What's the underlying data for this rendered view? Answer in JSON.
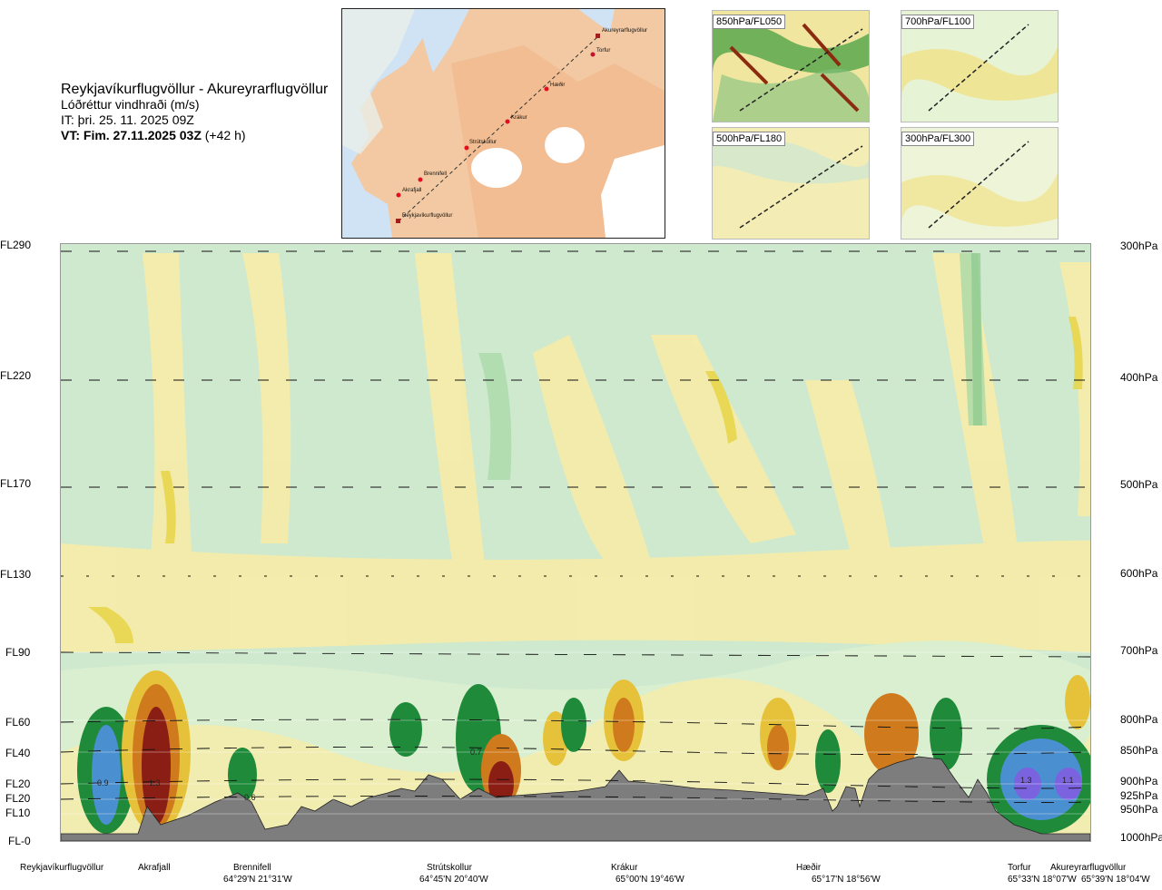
{
  "header": {
    "route": "Reykjavíkurflugvöllur - Akureyrarflugvöllur",
    "parameter": "Lóðréttur vindhraði (m/s)",
    "issued": "IT: þri. 25. 11. 2025 09Z",
    "valid_bold": "VT: Fim. 27.11.2025 03Z",
    "valid_offset": "(+42 h)"
  },
  "route_map": {
    "points": [
      {
        "name": "Akureyrarflugvöllur"
      },
      {
        "name": "Torfur"
      },
      {
        "name": "Hæðir"
      },
      {
        "name": "Krákur"
      },
      {
        "name": "Strútskollur"
      },
      {
        "name": "Brennifell"
      },
      {
        "name": "Akrafjall"
      },
      {
        "name": "Reykjavíkurflugvöllur"
      }
    ]
  },
  "thumbnails": [
    {
      "label": "850hPa/FL050"
    },
    {
      "label": "700hPa/FL100"
    },
    {
      "label": "500hPa/FL180"
    },
    {
      "label": "300hPa/FL300"
    }
  ],
  "levels": [
    {
      "fl": "FL290",
      "p": "300hPa"
    },
    {
      "fl": "FL220",
      "p": "400hPa"
    },
    {
      "fl": "FL170",
      "p": "500hPa"
    },
    {
      "fl": "FL130",
      "p": "600hPa"
    },
    {
      "fl": "FL90",
      "p": "700hPa"
    },
    {
      "fl": "FL60",
      "p": "800hPa"
    },
    {
      "fl": "FL40",
      "p": "850hPa"
    },
    {
      "fl": "FL20",
      "p": "900hPa"
    },
    {
      "fl": "FL20",
      "p": "925hPa"
    },
    {
      "fl": "FL10",
      "p": "950hPa"
    },
    {
      "fl": "FL-0",
      "p": "1000hPa"
    }
  ],
  "waypoints": [
    {
      "name": "Reykjavíkurflugvöllur",
      "coord": ""
    },
    {
      "name": "Akrafjall",
      "coord": ""
    },
    {
      "name": "Brennifell",
      "coord": "64°29'N 21°31'W"
    },
    {
      "name": "Strútskollur",
      "coord": "64°45'N 20°40'W"
    },
    {
      "name": "Krákur",
      "coord": "65°00'N 19°46'W"
    },
    {
      "name": "Hæðir",
      "coord": "65°17'N 18°56'W"
    },
    {
      "name": "Torfur",
      "coord": "65°33'N 18°07'W"
    },
    {
      "name": "Akureyrarflugvöllur",
      "coord": "65°39'N 18°04'W"
    }
  ],
  "cell_values": [
    "0.9",
    "1.3",
    "0.6",
    "0.7",
    "1.3",
    "1.1"
  ],
  "colors": {
    "strong_down": "#4a8fd0",
    "strong_down2": "#7b63e0",
    "down": "#1f8a3a",
    "weak_down": "#9bd49b",
    "neutral": "#cfe9cf",
    "weak_up": "#f5ecaa",
    "up": "#e6c23a",
    "strong_up": "#d07a1e",
    "very_strong_up": "#8a1e14",
    "terrain": "#7d7d7d"
  }
}
